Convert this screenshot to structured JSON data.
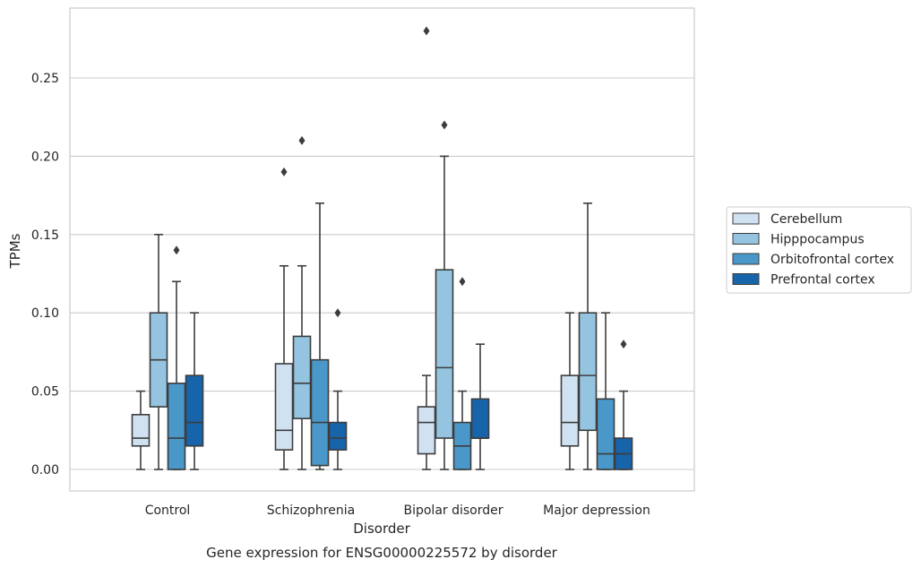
{
  "chart_data": {
    "type": "box",
    "title": "",
    "caption": "Gene expression for ENSG00000225572 by disorder",
    "xlabel": "Disorder",
    "ylabel": "TPMs",
    "ylim": [
      -0.013,
      0.295
    ],
    "yticks": [
      0.0,
      0.05,
      0.1,
      0.15,
      0.2,
      0.25
    ],
    "ytick_labels": [
      "0.00",
      "0.05",
      "0.10",
      "0.15",
      "0.20",
      "0.25"
    ],
    "grid": "horizontal",
    "legend_position": "right",
    "categories": [
      "Control",
      "Schizophrenia",
      "Bipolar disorder",
      "Major depression"
    ],
    "series": [
      {
        "name": "Cerebellum",
        "color": "#d0e1f2",
        "boxes": [
          {
            "min": 0.0,
            "q1": 0.015,
            "median": 0.02,
            "q3": 0.035,
            "max": 0.05,
            "outliers": []
          },
          {
            "min": 0.0,
            "q1": 0.0125,
            "median": 0.025,
            "q3": 0.0675,
            "max": 0.13,
            "outliers": [
              0.19
            ]
          },
          {
            "min": 0.0,
            "q1": 0.01,
            "median": 0.03,
            "q3": 0.04,
            "max": 0.06,
            "outliers": [
              0.28
            ]
          },
          {
            "min": 0.0,
            "q1": 0.015,
            "median": 0.03,
            "q3": 0.06,
            "max": 0.1,
            "outliers": []
          }
        ]
      },
      {
        "name": "Hipppocampus",
        "color": "#94c4df",
        "boxes": [
          {
            "min": 0.0,
            "q1": 0.04,
            "median": 0.07,
            "q3": 0.1,
            "max": 0.15,
            "outliers": []
          },
          {
            "min": 0.0,
            "q1": 0.0325,
            "median": 0.055,
            "q3": 0.085,
            "max": 0.13,
            "outliers": [
              0.21
            ]
          },
          {
            "min": 0.0,
            "q1": 0.02,
            "median": 0.065,
            "q3": 0.1275,
            "max": 0.2,
            "outliers": [
              0.22
            ]
          },
          {
            "min": 0.0,
            "q1": 0.025,
            "median": 0.06,
            "q3": 0.1,
            "max": 0.17,
            "outliers": []
          }
        ]
      },
      {
        "name": "Orbitofrontal cortex",
        "color": "#4a98c9",
        "boxes": [
          {
            "min": 0.0,
            "q1": 0.0,
            "median": 0.02,
            "q3": 0.055,
            "max": 0.12,
            "outliers": [
              0.14
            ]
          },
          {
            "min": 0.0,
            "q1": 0.0025,
            "median": 0.03,
            "q3": 0.07,
            "max": 0.17,
            "outliers": []
          },
          {
            "min": 0.0,
            "q1": 0.0,
            "median": 0.015,
            "q3": 0.03,
            "max": 0.05,
            "outliers": [
              0.12
            ]
          },
          {
            "min": 0.0,
            "q1": 0.0,
            "median": 0.01,
            "q3": 0.045,
            "max": 0.1,
            "outliers": []
          }
        ]
      },
      {
        "name": "Prefrontal cortex",
        "color": "#1764ab",
        "boxes": [
          {
            "min": 0.0,
            "q1": 0.015,
            "median": 0.03,
            "q3": 0.06,
            "max": 0.1,
            "outliers": []
          },
          {
            "min": 0.0,
            "q1": 0.0125,
            "median": 0.02,
            "q3": 0.03,
            "max": 0.05,
            "outliers": [
              0.1
            ]
          },
          {
            "min": 0.0,
            "q1": 0.02,
            "median": 0.02,
            "q3": 0.045,
            "max": 0.08,
            "outliers": []
          },
          {
            "min": 0.0,
            "q1": 0.0,
            "median": 0.01,
            "q3": 0.02,
            "max": 0.05,
            "outliers": [
              0.08
            ]
          }
        ]
      }
    ]
  }
}
